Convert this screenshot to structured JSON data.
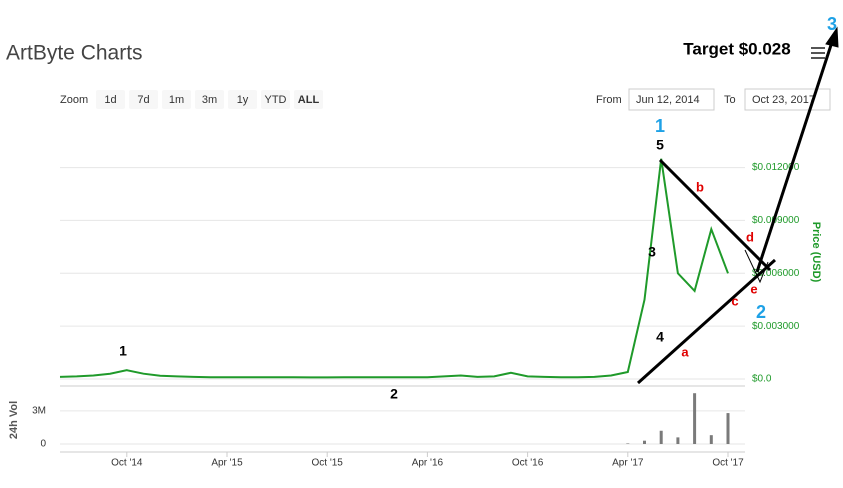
{
  "title": "ArtByte Charts",
  "range_selector": {
    "label": "Zoom",
    "buttons": [
      "1d",
      "7d",
      "1m",
      "3m",
      "1y",
      "YTD",
      "ALL"
    ]
  },
  "date_range": {
    "from_label": "From",
    "from": "Jun 12, 2014",
    "to_label": "To",
    "to": "Oct 23, 2017"
  },
  "annotations": [
    {
      "text": "1",
      "color": "#000000"
    },
    {
      "text": "2",
      "color": "#000000"
    },
    {
      "text": "3",
      "color": "#000000"
    },
    {
      "text": "4",
      "color": "#000000"
    },
    {
      "text": "5",
      "color": "#000000"
    },
    {
      "text": "a",
      "color": "#e00000"
    },
    {
      "text": "b",
      "color": "#e00000"
    },
    {
      "text": "c",
      "color": "#e00000"
    },
    {
      "text": "d",
      "color": "#e00000"
    },
    {
      "text": "e",
      "color": "#e00000"
    },
    {
      "text": "Target $0.028",
      "color": "#000000"
    },
    {
      "text": "1",
      "color": "#1ea1e6"
    },
    {
      "text": "2",
      "color": "#1ea1e6"
    },
    {
      "text": "3",
      "color": "#1ea1e6"
    }
  ],
  "chart_data": [
    {
      "type": "line",
      "y_label": "Price (USD)",
      "color": "#1f9a2a",
      "x": [
        "2014-06",
        "2014-07",
        "2014-08",
        "2014-09",
        "2014-10",
        "2014-11",
        "2014-12",
        "2015-01",
        "2015-02",
        "2015-03",
        "2015-04",
        "2015-05",
        "2015-06",
        "2015-07",
        "2015-08",
        "2015-09",
        "2015-10",
        "2015-11",
        "2015-12",
        "2016-01",
        "2016-02",
        "2016-03",
        "2016-04",
        "2016-05",
        "2016-06",
        "2016-07",
        "2016-08",
        "2016-09",
        "2016-10",
        "2016-11",
        "2016-12",
        "2017-01",
        "2017-02",
        "2017-03",
        "2017-04",
        "2017-05",
        "2017-06",
        "2017-07",
        "2017-08",
        "2017-09",
        "2017-10"
      ],
      "values": [
        0.00012,
        0.00015,
        0.0002,
        0.0003,
        0.0005,
        0.0003,
        0.00018,
        0.00015,
        0.00012,
        0.0001,
        0.0001,
        0.0001,
        0.0001,
        0.0001,
        0.0001,
        9e-05,
        9e-05,
        0.0001,
        0.0001,
        0.0001,
        0.0001,
        0.0001,
        0.0001,
        0.00015,
        0.0002,
        0.00012,
        0.00015,
        0.00035,
        0.00015,
        0.00012,
        0.0001,
        0.0001,
        0.00012,
        0.0002,
        0.0004,
        0.0045,
        0.0125,
        0.006,
        0.005,
        0.0085,
        0.006
      ],
      "xlim": [
        "2014-06",
        "2017-10"
      ],
      "ylim": [
        0,
        0.0147
      ],
      "yticks": [
        {
          "value": 0,
          "label": "$0.0"
        },
        {
          "value": 0.003,
          "label": "$0.003000"
        },
        {
          "value": 0.006,
          "label": "$0.006000"
        },
        {
          "value": 0.009,
          "label": "$0.009000"
        },
        {
          "value": 0.012,
          "label": "$0.012000"
        }
      ],
      "grid": true
    },
    {
      "type": "bar",
      "y_label": "24h Vol",
      "color": "#7a7a7a",
      "x": [
        "2014-06",
        "2014-07",
        "2014-08",
        "2014-09",
        "2014-10",
        "2014-11",
        "2014-12",
        "2015-01",
        "2015-02",
        "2015-03",
        "2015-04",
        "2015-05",
        "2015-06",
        "2015-07",
        "2015-08",
        "2015-09",
        "2015-10",
        "2015-11",
        "2015-12",
        "2016-01",
        "2016-02",
        "2016-03",
        "2016-04",
        "2016-05",
        "2016-06",
        "2016-07",
        "2016-08",
        "2016-09",
        "2016-10",
        "2016-11",
        "2016-12",
        "2017-01",
        "2017-02",
        "2017-03",
        "2017-04",
        "2017-05",
        "2017-06",
        "2017-07",
        "2017-08",
        "2017-09",
        "2017-10"
      ],
      "values": [
        0,
        0,
        0,
        0,
        0,
        0,
        0,
        0,
        0,
        0,
        0,
        0,
        0,
        0,
        0,
        0,
        0,
        0,
        0,
        0,
        0,
        0,
        0,
        0,
        0,
        0,
        0,
        0,
        0,
        0,
        0,
        0,
        0,
        0,
        50000,
        300000,
        1200000,
        600000,
        4600000,
        800000,
        2800000
      ],
      "xlim": [
        "2014-06",
        "2017-10"
      ],
      "ylim": [
        0,
        4800000
      ],
      "yticks": [
        0,
        {
          "value": 3000000,
          "label": "3M"
        }
      ],
      "xticks": [
        {
          "value": "2014-10",
          "label": "Oct '14"
        },
        {
          "value": "2015-04",
          "label": "Apr '15"
        },
        {
          "value": "2015-10",
          "label": "Oct '15"
        },
        {
          "value": "2016-04",
          "label": "Apr '16"
        },
        {
          "value": "2016-10",
          "label": "Oct '16"
        },
        {
          "value": "2017-04",
          "label": "Apr '17"
        },
        {
          "value": "2017-10",
          "label": "Oct '17"
        }
      ]
    }
  ]
}
